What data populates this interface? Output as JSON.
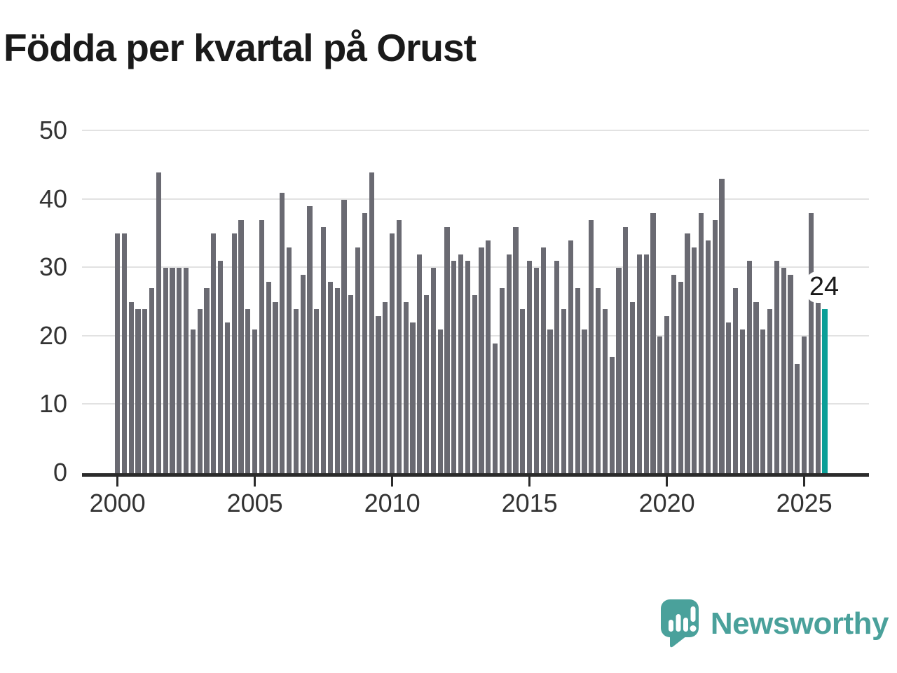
{
  "header": {
    "title": "Födda per kvartal på Orust"
  },
  "callout": {
    "label": "24"
  },
  "logo": {
    "text": "Newsworthy",
    "icon": "speech-bubble-bar-chart-icon"
  },
  "colors": {
    "bar": "#6a6a72",
    "highlight": "#0b9f97",
    "grid": "#e2e2e2",
    "axis": "#2b2b2b",
    "title_text": "#1a1a1a",
    "tick_text": "#333333",
    "logo_teal": "#4aa19b",
    "background": "#ffffff"
  },
  "chart_data": {
    "type": "bar",
    "title": "Födda per kvartal på Orust",
    "xlabel": "",
    "ylabel": "",
    "x_start": "2000 Q1",
    "x_end": "2025 Q4",
    "x_unit": "quarter",
    "values": [
      35,
      35,
      25,
      24,
      24,
      27,
      44,
      30,
      30,
      30,
      30,
      21,
      24,
      27,
      35,
      31,
      22,
      35,
      37,
      24,
      21,
      37,
      28,
      25,
      41,
      33,
      24,
      29,
      39,
      24,
      36,
      28,
      27,
      40,
      26,
      33,
      38,
      44,
      23,
      25,
      35,
      37,
      25,
      22,
      32,
      26,
      30,
      21,
      36,
      31,
      32,
      31,
      26,
      33,
      34,
      19,
      27,
      32,
      36,
      24,
      31,
      30,
      33,
      21,
      31,
      24,
      34,
      27,
      21,
      37,
      27,
      24,
      17,
      30,
      36,
      25,
      32,
      32,
      38,
      20,
      23,
      29,
      28,
      35,
      33,
      38,
      34,
      37,
      43,
      22,
      27,
      21,
      31,
      25,
      21,
      24,
      31,
      30,
      29,
      16,
      20,
      38,
      25,
      24
    ],
    "x_tick_labels": [
      "2000",
      "2005",
      "2010",
      "2015",
      "2020",
      "2025"
    ],
    "x_tick_indices": [
      0,
      20,
      40,
      60,
      80,
      100
    ],
    "y_ticks": [
      0,
      10,
      20,
      30,
      40,
      50
    ],
    "y_tick_labels": [
      "0",
      "10",
      "20",
      "30",
      "40",
      "50"
    ],
    "ylim": [
      0,
      50
    ],
    "grid": "horizontal",
    "legend": "none",
    "highlight_last_bar": true,
    "last_value_label": "24"
  }
}
